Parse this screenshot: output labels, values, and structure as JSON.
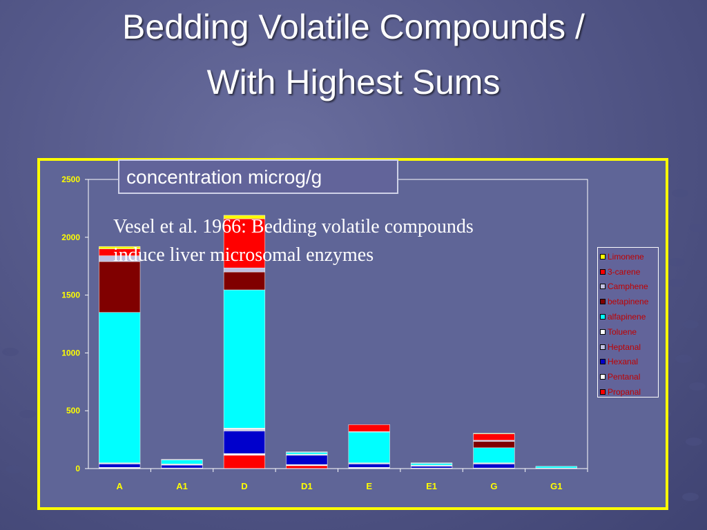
{
  "slide": {
    "title_line1": "Bedding Volatile Compounds /",
    "title_line2": "With Highest Sums",
    "annotation_line1": "Vesel et al. 1966: Bedding volatile compounds",
    "annotation_line2": "induce liver microsomal enzymes"
  },
  "colors": {
    "frame": "#ffff00",
    "legend_text": "#c00000"
  },
  "chart_data": {
    "type": "bar",
    "stacked": true,
    "title": "",
    "xlabel": "",
    "ylabel": "concentration microg/g",
    "categories": [
      "A",
      "A1",
      "D",
      "D1",
      "E",
      "E1",
      "G",
      "G1"
    ],
    "ylim": [
      0,
      2500
    ],
    "yticks": [
      0,
      500,
      1000,
      1500,
      2000,
      2500
    ],
    "grid": false,
    "legend_position": "right",
    "series": [
      {
        "name": "Propanal",
        "color": "#ff0000",
        "values": [
          0,
          0,
          115,
          25,
          0,
          0,
          0,
          0
        ]
      },
      {
        "name": "Pentanal",
        "color": "#ffffff",
        "values": [
          10,
          5,
          15,
          10,
          10,
          5,
          5,
          0
        ]
      },
      {
        "name": "Hexanal",
        "color": "#0000cc",
        "values": [
          30,
          25,
          195,
          80,
          30,
          15,
          35,
          5
        ]
      },
      {
        "name": "Heptanal",
        "color": "#c0c0e0",
        "values": [
          5,
          5,
          15,
          5,
          5,
          5,
          5,
          0
        ]
      },
      {
        "name": "Toluene",
        "color": "#ffffff",
        "values": [
          5,
          5,
          10,
          5,
          5,
          5,
          5,
          0
        ]
      },
      {
        "name": "alfapinene",
        "color": "#00ffff",
        "values": [
          1300,
          35,
          1195,
          15,
          265,
          15,
          130,
          15
        ]
      },
      {
        "name": "betapinene",
        "color": "#800000",
        "values": [
          440,
          0,
          155,
          0,
          0,
          0,
          55,
          0
        ]
      },
      {
        "name": "Camphene",
        "color": "#c0c0e0",
        "values": [
          50,
          5,
          35,
          5,
          5,
          5,
          10,
          0
        ]
      },
      {
        "name": "3-carene",
        "color": "#ff0000",
        "values": [
          60,
          0,
          425,
          0,
          60,
          0,
          55,
          0
        ]
      },
      {
        "name": "Limonene",
        "color": "#ffff00",
        "values": [
          20,
          0,
          30,
          0,
          0,
          0,
          5,
          0
        ]
      }
    ]
  }
}
